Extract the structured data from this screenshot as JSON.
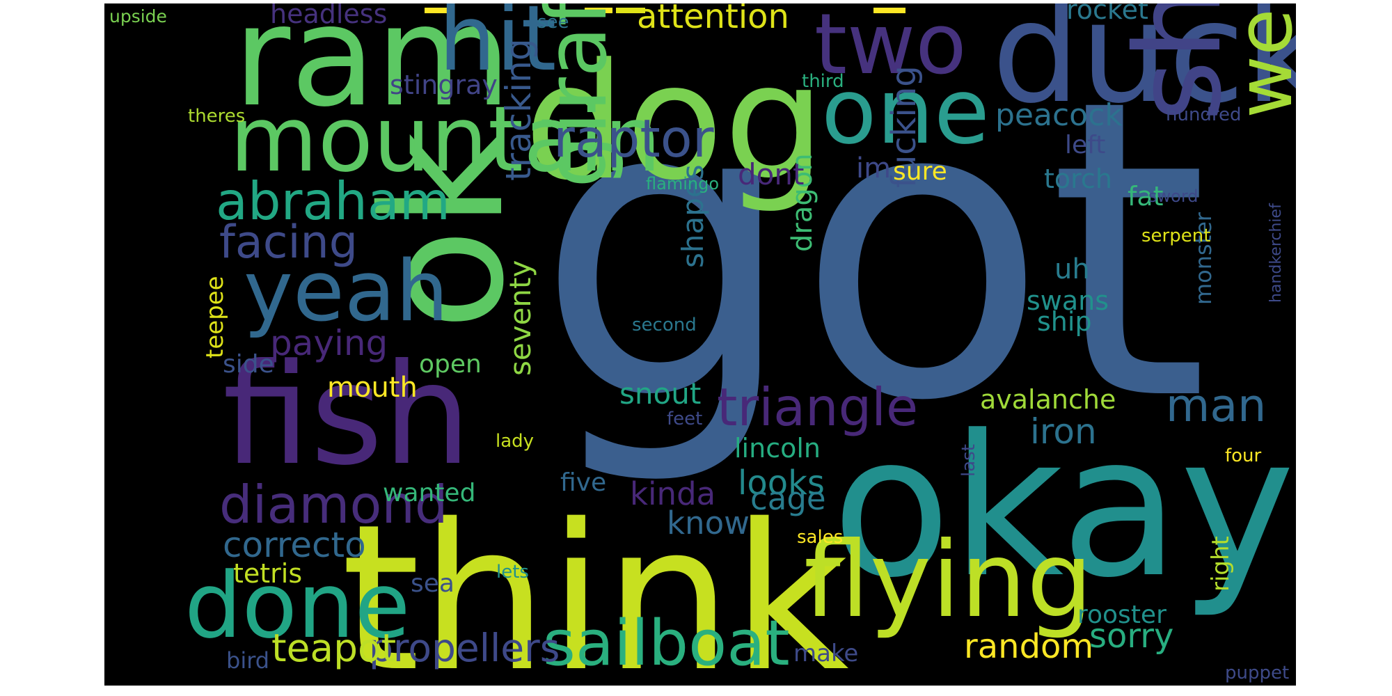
{
  "words": [
    {
      "text": "got",
      "color": "#3b5f8e",
      "weight": 1.0
    },
    {
      "text": "okay",
      "color": "#218f8d",
      "weight": 0.55
    },
    {
      "text": "think",
      "color": "#c7e020",
      "weight": 0.55
    },
    {
      "text": "ok",
      "color": "#5cc863",
      "weight": 0.42
    },
    {
      "text": "dog",
      "color": "#7ad151",
      "weight": 0.48
    },
    {
      "text": "fish",
      "color": "#482878",
      "weight": 0.42
    },
    {
      "text": "ram",
      "color": "#5cc863",
      "weight": 0.42
    },
    {
      "text": "duck",
      "color": "#3b528b",
      "weight": 0.42
    },
    {
      "text": "shark",
      "color": "#414487",
      "weight": 0.36
    },
    {
      "text": "flying",
      "color": "#bddf26",
      "weight": 0.36
    },
    {
      "text": "giraffe",
      "color": "#5cc863",
      "weight": 0.28
    },
    {
      "text": "mountain",
      "color": "#5cc863",
      "weight": 0.3
    },
    {
      "text": "one",
      "color": "#2a9d8f",
      "weight": 0.3
    },
    {
      "text": "two",
      "color": "#46327e",
      "weight": 0.3
    },
    {
      "text": "hit",
      "color": "#31688e",
      "weight": 0.3
    },
    {
      "text": "yeah",
      "color": "#31688e",
      "weight": 0.28
    },
    {
      "text": "done",
      "color": "#21a585",
      "weight": 0.3
    },
    {
      "text": "weird",
      "color": "#a5db36",
      "weight": 0.28
    },
    {
      "text": "sailboat",
      "color": "#2ab07f",
      "weight": 0.22
    },
    {
      "text": "triangle",
      "color": "#482878",
      "weight": 0.18
    },
    {
      "text": "diamond",
      "color": "#472d7b",
      "weight": 0.18
    },
    {
      "text": "abraham",
      "color": "#22a884",
      "weight": 0.17
    },
    {
      "text": "raptor",
      "color": "#3b528b",
      "weight": 0.17
    },
    {
      "text": "facing",
      "color": "#3e4a89",
      "weight": 0.17
    },
    {
      "text": "man",
      "color": "#31688e",
      "weight": 0.17
    },
    {
      "text": "propellers",
      "color": "#3e4989",
      "weight": 0.15
    },
    {
      "text": "teapot",
      "color": "#bddf26",
      "weight": 0.15
    },
    {
      "text": "tracking",
      "color": "#38598c",
      "weight": 0.14
    },
    {
      "text": "correcto",
      "color": "#31688e",
      "weight": 0.13
    },
    {
      "text": "paying",
      "color": "#482878",
      "weight": 0.12
    },
    {
      "text": "attention",
      "color": "#dfe318",
      "weight": 0.13
    },
    {
      "text": "peacock",
      "color": "#2c728e",
      "weight": 0.11
    },
    {
      "text": "iron",
      "color": "#2c728e",
      "weight": 0.13
    },
    {
      "text": "sorry",
      "color": "#28ae80",
      "weight": 0.12
    },
    {
      "text": "random",
      "color": "#fde725",
      "weight": 0.12
    },
    {
      "text": "fucking",
      "color": "#3b528b",
      "weight": 0.12
    },
    {
      "text": "seventy",
      "color": "#8fd744",
      "weight": 0.11
    },
    {
      "text": "shapes",
      "color": "#2c728e",
      "weight": 0.11
    },
    {
      "text": "dragon",
      "color": "#3dbc74",
      "weight": 0.11
    },
    {
      "text": "looks",
      "color": "#238a8d",
      "weight": 0.12
    },
    {
      "text": "cage",
      "color": "#287c8e",
      "weight": 0.12
    },
    {
      "text": "know",
      "color": "#31688e",
      "weight": 0.12
    },
    {
      "text": "kinda",
      "color": "#482878",
      "weight": 0.12
    },
    {
      "text": "snout",
      "color": "#21a685",
      "weight": 0.11
    },
    {
      "text": "lincoln",
      "color": "#26ad81",
      "weight": 0.1
    },
    {
      "text": "avalanche",
      "color": "#a0da39",
      "weight": 0.1
    },
    {
      "text": "stingray",
      "color": "#414487",
      "weight": 0.09
    },
    {
      "text": "headless",
      "color": "#46327e",
      "weight": 0.09
    },
    {
      "text": "rocket",
      "color": "#2a788e",
      "weight": 0.09
    },
    {
      "text": "dont",
      "color": "#482878",
      "weight": 0.1
    },
    {
      "text": "im",
      "color": "#3e4989",
      "weight": 0.1
    },
    {
      "text": "sure",
      "color": "#fde725",
      "weight": 0.09
    },
    {
      "text": "torch",
      "color": "#2a788e",
      "weight": 0.09
    },
    {
      "text": "fat",
      "color": "#35b779",
      "weight": 0.09
    },
    {
      "text": "left",
      "color": "#3e4a89",
      "weight": 0.08
    },
    {
      "text": "uh",
      "color": "#287c8e",
      "weight": 0.09
    },
    {
      "text": "swans",
      "color": "#21918c",
      "weight": 0.09
    },
    {
      "text": "ship",
      "color": "#21918c",
      "weight": 0.09
    },
    {
      "text": "monster",
      "color": "#31688e",
      "weight": 0.08
    },
    {
      "text": "mouth",
      "color": "#fde725",
      "weight": 0.09
    },
    {
      "text": "open",
      "color": "#5ec962",
      "weight": 0.09
    },
    {
      "text": "side",
      "color": "#3b528b",
      "weight": 0.09
    },
    {
      "text": "teepee",
      "color": "#dfe318",
      "weight": 0.09
    },
    {
      "text": "wanted",
      "color": "#35b779",
      "weight": 0.09
    },
    {
      "text": "five",
      "color": "#31688e",
      "weight": 0.08
    },
    {
      "text": "tetris",
      "color": "#c2df23",
      "weight": 0.09
    },
    {
      "text": "sea",
      "color": "#3b528b",
      "weight": 0.08
    },
    {
      "text": "bird",
      "color": "#3b528b",
      "weight": 0.07
    },
    {
      "text": "make",
      "color": "#3e4a89",
      "weight": 0.08
    },
    {
      "text": "rooster",
      "color": "#21918c",
      "weight": 0.08
    },
    {
      "text": "right",
      "color": "#b5de2b",
      "weight": 0.08
    },
    {
      "text": "puppet",
      "color": "#3e4a89",
      "weight": 0.06
    },
    {
      "text": "sales",
      "color": "#fde725",
      "weight": 0.06
    },
    {
      "text": "lets",
      "color": "#21918c",
      "weight": 0.06
    },
    {
      "text": "lady",
      "color": "#c7e020",
      "weight": 0.06
    },
    {
      "text": "feet",
      "color": "#3e4a89",
      "weight": 0.06
    },
    {
      "text": "second",
      "color": "#2a788e",
      "weight": 0.06
    },
    {
      "text": "last",
      "color": "#3e4989",
      "weight": 0.06
    },
    {
      "text": "four",
      "color": "#fde725",
      "weight": 0.06
    },
    {
      "text": "handkerchief",
      "color": "#3e4a89",
      "weight": 0.06
    },
    {
      "text": "serpent",
      "color": "#dfe318",
      "weight": 0.06
    },
    {
      "text": "sword",
      "color": "#3e4989",
      "weight": 0.06
    },
    {
      "text": "hundred",
      "color": "#3e4989",
      "weight": 0.06
    },
    {
      "text": "third",
      "color": "#2ab07f",
      "weight": 0.06
    },
    {
      "text": "see",
      "color": "#2c728e",
      "weight": 0.06
    },
    {
      "text": "upside",
      "color": "#7ad151",
      "weight": 0.06
    },
    {
      "text": "theres",
      "color": "#addc30",
      "weight": 0.06
    },
    {
      "text": "flamingo",
      "color": "#2ab07f",
      "weight": 0.06
    }
  ]
}
